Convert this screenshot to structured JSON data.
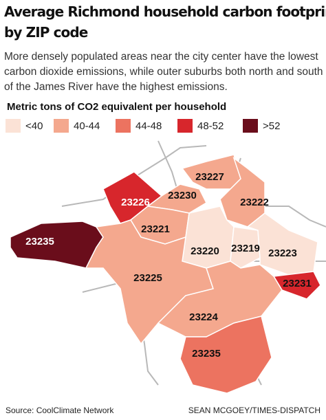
{
  "header": {
    "title_lines": [
      "Average Richmond household carbon footprint",
      "by ZIP code"
    ],
    "subtitle": "More densely populated areas near the city center have the lowest carbon dioxide emissions, while outer suburbs both north and south of the James River have the highest emissions."
  },
  "legend": {
    "title": "Metric tons of CO2 equivalent per household",
    "items": [
      {
        "label": "<40",
        "color": "#fbe2d6"
      },
      {
        "label": "40-44",
        "color": "#f4a88e"
      },
      {
        "label": "44-48",
        "color": "#ec7360"
      },
      {
        "label": "48-52",
        "color": "#d7262c"
      },
      {
        "label": ">52",
        "color": "#6a0d1b"
      }
    ]
  },
  "map": {
    "regions": [
      {
        "label": "23227"
      },
      {
        "label": "23226"
      },
      {
        "label": "23230"
      },
      {
        "label": "23222"
      },
      {
        "label": "23221"
      },
      {
        "label": "23235"
      },
      {
        "label": "23220"
      },
      {
        "label": "23219"
      },
      {
        "label": "23223"
      },
      {
        "label": "23231"
      },
      {
        "label": "23225"
      },
      {
        "label": "23224"
      },
      {
        "label": "23235"
      }
    ]
  },
  "footer": {
    "source": "Source: CoolClimate Network",
    "credit": "SEAN MCGOEY/TIMES-DISPATCH"
  }
}
